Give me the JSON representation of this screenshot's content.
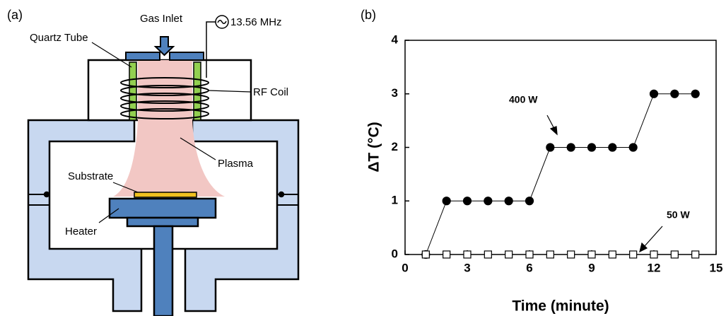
{
  "diagram": {
    "panel_label": "(a)",
    "labels": {
      "gas_inlet": "Gas Inlet",
      "frequency": "13.56 MHz",
      "quartz_tube": "Quartz Tube",
      "rf_coil": "RF Coil",
      "plasma": "Plasma",
      "substrate": "Substrate",
      "heater": "Heater"
    }
  },
  "chart_data": {
    "type": "line",
    "panel_label": "(b)",
    "x_label": "Time (minute)",
    "y_label": "ΔT (°C)",
    "xlim": [
      0,
      15
    ],
    "xticks": [
      0,
      3,
      6,
      9,
      12,
      15
    ],
    "ylim": [
      0,
      4
    ],
    "yticks": [
      0,
      1,
      2,
      3,
      4
    ],
    "series": [
      {
        "name": "400 W",
        "color": "#000000",
        "marker": "circle",
        "filled": true,
        "x": [
          1,
          2,
          3,
          4,
          5,
          6,
          7,
          8,
          9,
          10,
          11,
          12,
          13,
          14
        ],
        "values": [
          0,
          1,
          1,
          1,
          1,
          1,
          2,
          2,
          2,
          2,
          2,
          3,
          3,
          3
        ]
      },
      {
        "name": "50 W",
        "color": "#000000",
        "marker": "square",
        "filled": false,
        "x": [
          1,
          2,
          3,
          4,
          5,
          6,
          7,
          8,
          9,
          10,
          11,
          12,
          13,
          14
        ],
        "values": [
          0,
          0,
          0,
          0,
          0,
          0,
          0,
          0,
          0,
          0,
          0,
          0,
          0,
          0
        ]
      }
    ]
  }
}
